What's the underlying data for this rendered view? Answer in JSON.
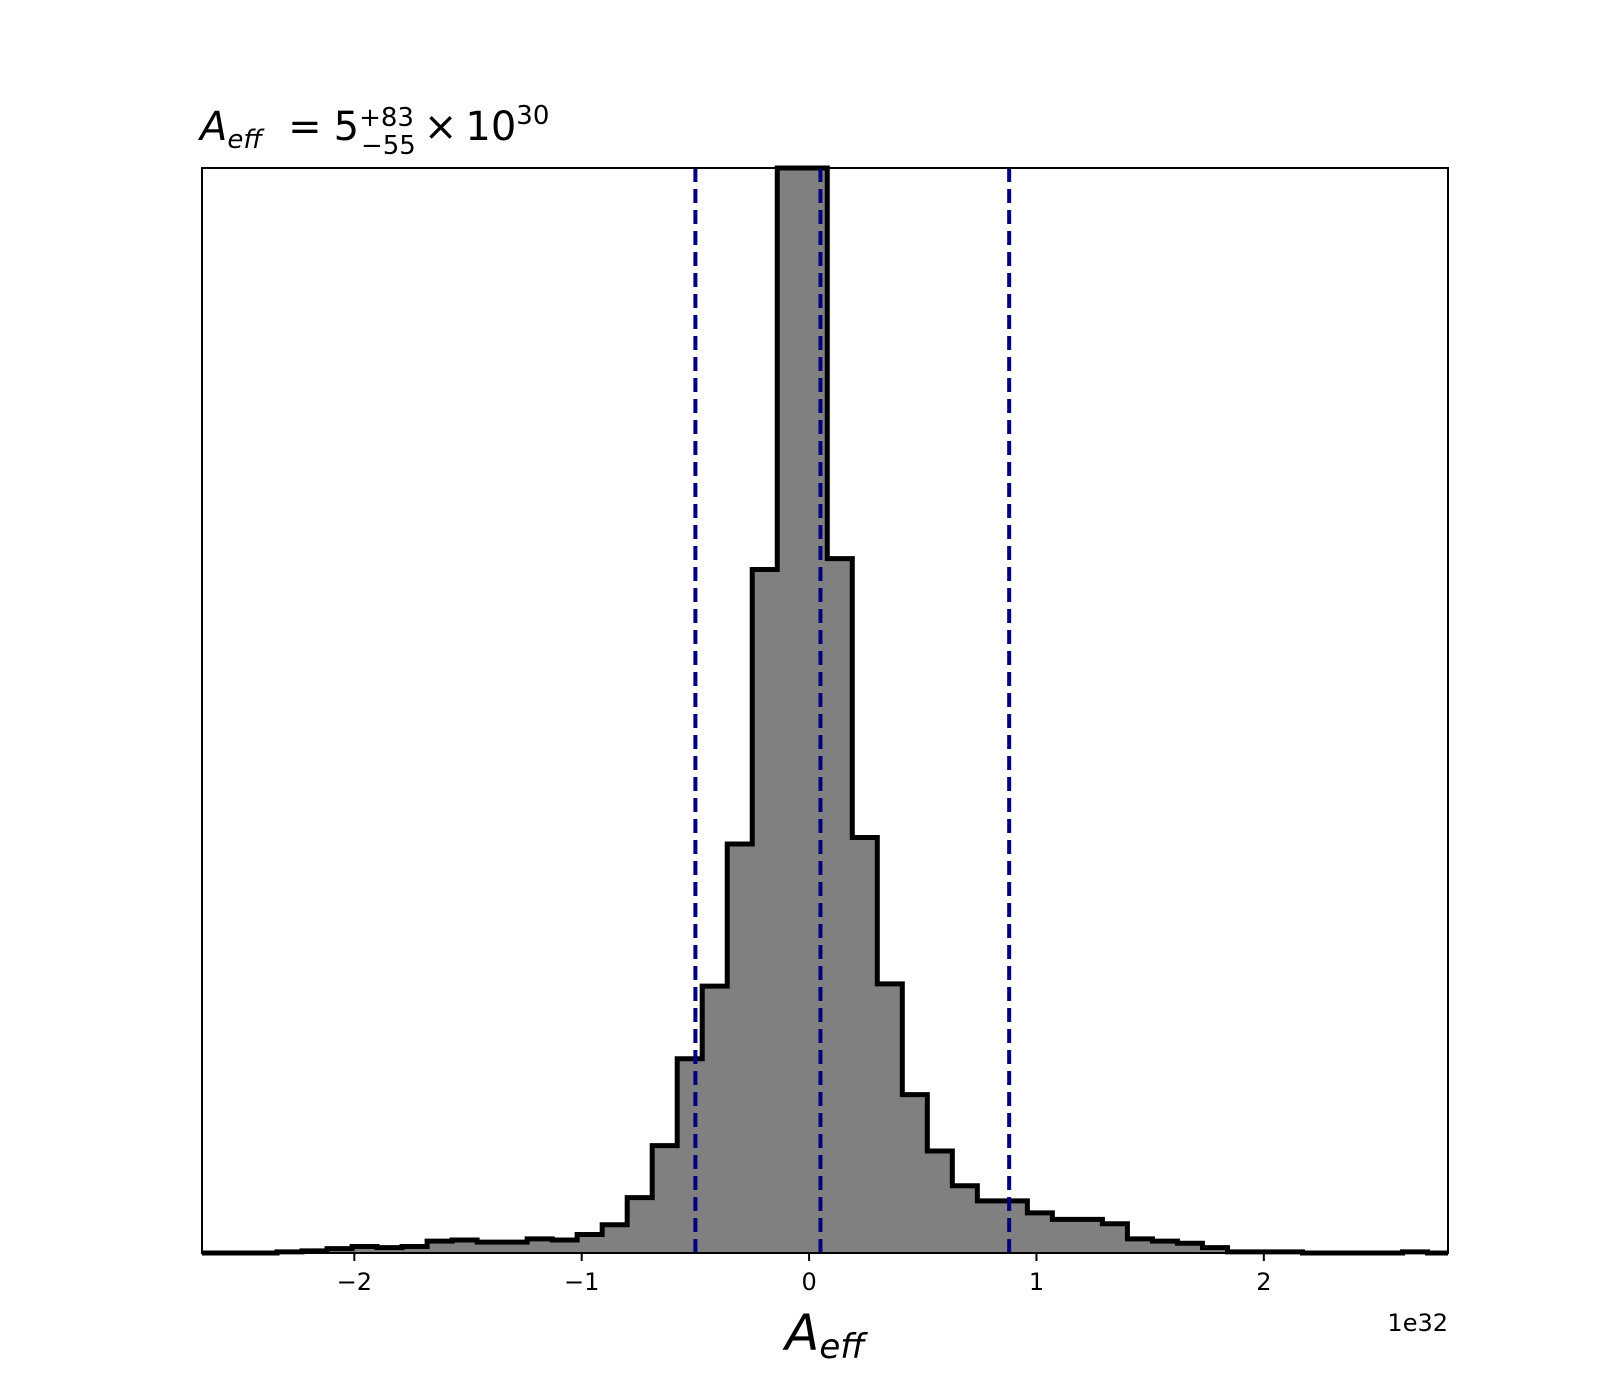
{
  "title": {
    "symbol": "A",
    "symbol_sub": "eff",
    "equals": "=",
    "median": "5",
    "plus": "+83",
    "minus": "−55",
    "times": "×",
    "base": "10",
    "exponent": "30"
  },
  "xlabel": {
    "symbol": "A",
    "sub": "eff"
  },
  "offset_text": "1e32",
  "colors": {
    "fill": "#808080",
    "edge": "#000000",
    "quantile": "#00007f"
  },
  "chart_data": {
    "type": "bar",
    "subtype": "histogram-step",
    "xlim": [
      -2.67,
      2.81
    ],
    "ylim": [
      0,
      1
    ],
    "x_unit_scale": "1e32",
    "grid": false,
    "legend": "none",
    "x_ticks": [
      {
        "value": -2,
        "label": "−2"
      },
      {
        "value": -1,
        "label": "−1"
      },
      {
        "value": 0,
        "label": "0"
      },
      {
        "value": 1,
        "label": "1"
      },
      {
        "value": 2,
        "label": "2"
      }
    ],
    "bin_edges": [
      -2.67,
      -2.56,
      -2.45,
      -2.34,
      -2.23,
      -2.12,
      -2.01,
      -1.9,
      -1.79,
      -1.68,
      -1.57,
      -1.46,
      -1.35,
      -1.24,
      -1.13,
      -1.02,
      -0.91,
      -0.8,
      -0.69,
      -0.58,
      -0.47,
      -0.36,
      -0.25,
      -0.14,
      -0.03,
      0.08,
      0.19,
      0.3,
      0.41,
      0.52,
      0.63,
      0.74,
      0.85,
      0.96,
      1.07,
      1.18,
      1.29,
      1.4,
      1.51,
      1.62,
      1.73,
      1.84,
      1.95,
      2.06,
      2.17,
      2.28,
      2.39,
      2.5,
      2.61,
      2.72,
      2.81
    ],
    "values": [
      0,
      0,
      0,
      0.001,
      0.002,
      0.004,
      0.006,
      0.005,
      0.006,
      0.011,
      0.012,
      0.01,
      0.01,
      0.013,
      0.012,
      0.017,
      0.026,
      0.051,
      0.099,
      0.179,
      0.246,
      0.377,
      0.63,
      1.0,
      1.0,
      0.64,
      0.383,
      0.248,
      0.146,
      0.094,
      0.062,
      0.048,
      0.048,
      0.037,
      0.031,
      0.031,
      0.027,
      0.013,
      0.011,
      0.009,
      0.005,
      0.001,
      0.001,
      0.001,
      0,
      0,
      0,
      0,
      0.001,
      0
    ],
    "quantiles": [
      -0.5,
      0.05,
      0.88
    ]
  }
}
